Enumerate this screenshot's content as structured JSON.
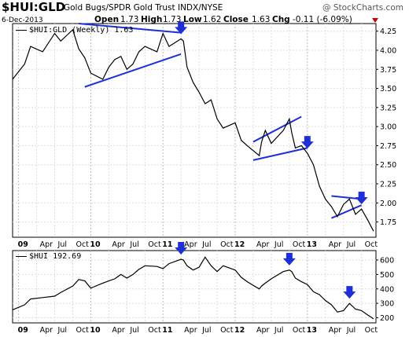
{
  "header": {
    "symbol": "$HUI:GLD",
    "description": "Gold Bugs/SPDR Gold Trust INDX/NYSE",
    "watermark": "@ StockCharts.com",
    "date": "6-Dec-2013",
    "open_label": "Open",
    "open": "1.73",
    "high_label": "High",
    "high": "1.73",
    "low_label": "Low",
    "low": "1.62",
    "close_label": "Close",
    "close": "1.63",
    "chg_label": "Chg",
    "chg": "-0.11 (-6.09%)"
  },
  "chart_data": [
    {
      "type": "line",
      "legend": "$HUI:GLD (Weekly) 1.63",
      "ylim": [
        1.55,
        4.35
      ],
      "y_ticks": [
        1.75,
        2.0,
        2.25,
        2.5,
        2.75,
        3.0,
        3.25,
        3.5,
        3.75,
        4.0,
        4.25
      ],
      "y_tick_labels": [
        "1.75",
        "2.00",
        "2.25",
        "2.50",
        "2.75",
        "3.00",
        "3.25",
        "3.50",
        "3.75",
        "4.00",
        "4.25"
      ],
      "x_ticks": [
        "09",
        "Apr",
        "Jul",
        "Oct",
        "10",
        "Apr",
        "Jul",
        "Oct",
        "11",
        "Apr",
        "Jul",
        "Oct",
        "12",
        "Apr",
        "Jul",
        "Oct",
        "13",
        "Apr",
        "Jul",
        "Oct"
      ],
      "x": [
        "2008-12",
        "2009-02",
        "2009-03",
        "2009-05",
        "2009-07",
        "2009-08",
        "2009-10",
        "2009-11",
        "2009-12",
        "2010-01",
        "2010-03",
        "2010-04",
        "2010-05",
        "2010-06",
        "2010-07",
        "2010-08",
        "2010-09",
        "2010-10",
        "2010-12",
        "2011-01",
        "2011-02",
        "2011-04",
        "2011-04",
        "2011-05",
        "2011-06",
        "2011-07",
        "2011-08",
        "2011-09",
        "2011-10",
        "2011-11",
        "2012-01",
        "2012-02",
        "2012-03",
        "2012-05",
        "2012-05",
        "2012-06",
        "2012-07",
        "2012-09",
        "2012-10",
        "2012-10",
        "2012-11",
        "2012-12",
        "2013-01",
        "2013-02",
        "2013-03",
        "2013-04",
        "2013-05",
        "2013-06",
        "2013-07",
        "2013-08",
        "2013-09",
        "2013-10",
        "2013-11",
        "2013-12"
      ],
      "series": [
        {
          "values": [
            3.62,
            3.82,
            4.05,
            3.98,
            4.22,
            4.12,
            4.27,
            4.02,
            3.9,
            3.7,
            3.62,
            3.78,
            3.88,
            3.92,
            3.75,
            3.82,
            3.98,
            4.05,
            3.98,
            4.22,
            4.05,
            4.15,
            4.12,
            3.78,
            3.58,
            3.45,
            3.3,
            3.35,
            3.1,
            2.98,
            3.05,
            2.82,
            2.75,
            2.62,
            2.8,
            2.95,
            2.78,
            2.95,
            3.1,
            2.92,
            2.72,
            2.75,
            2.65,
            2.5,
            2.22,
            2.05,
            1.95,
            1.82,
            1.98,
            2.05,
            1.85,
            1.92,
            1.78,
            1.63
          ]
        }
      ],
      "annotation_lines": [
        [
          [
            "2009-12",
            3.52
          ],
          [
            "2011-04",
            3.95
          ]
        ],
        [
          [
            "2009-11",
            4.35
          ],
          [
            "2011-04",
            4.23
          ]
        ],
        [
          [
            "2012-04",
            2.56
          ],
          [
            "2013-01",
            2.72
          ]
        ],
        [
          [
            "2012-04",
            2.8
          ],
          [
            "2012-12",
            3.13
          ]
        ],
        [
          [
            "2013-05",
            1.8
          ],
          [
            "2013-10",
            1.97
          ]
        ],
        [
          [
            "2013-05",
            2.09
          ],
          [
            "2013-10",
            2.05
          ]
        ]
      ],
      "arrow_markers": [
        "2011-04",
        "2013-01",
        "2013-10"
      ]
    },
    {
      "type": "line",
      "legend": "$HUI 192.69",
      "ylim": [
        165,
        665
      ],
      "y_ticks": [
        200,
        300,
        400,
        500,
        600
      ],
      "y_tick_labels": [
        "200",
        "300",
        "400",
        "500",
        "600"
      ],
      "x_ticks": [
        "09",
        "Apr",
        "Jul",
        "Oct",
        "10",
        "Apr",
        "Jul",
        "Oct",
        "11",
        "Apr",
        "Jul",
        "Oct",
        "12",
        "Apr",
        "Jul",
        "Oct",
        "13",
        "Apr",
        "Jul",
        "Oct"
      ],
      "x": [
        "2008-12",
        "2009-02",
        "2009-03",
        "2009-05",
        "2009-07",
        "2009-08",
        "2009-10",
        "2009-11",
        "2009-12",
        "2010-01",
        "2010-03",
        "2010-04",
        "2010-05",
        "2010-06",
        "2010-07",
        "2010-08",
        "2010-09",
        "2010-10",
        "2010-12",
        "2011-01",
        "2011-02",
        "2011-04",
        "2011-04",
        "2011-05",
        "2011-06",
        "2011-07",
        "2011-08",
        "2011-09",
        "2011-10",
        "2011-11",
        "2012-01",
        "2012-02",
        "2012-03",
        "2012-05",
        "2012-05",
        "2012-06",
        "2012-07",
        "2012-09",
        "2012-10",
        "2012-10",
        "2012-11",
        "2012-12",
        "2013-01",
        "2013-02",
        "2013-03",
        "2013-04",
        "2013-05",
        "2013-06",
        "2013-07",
        "2013-08",
        "2013-09",
        "2013-10",
        "2013-11",
        "2013-12"
      ],
      "series": [
        {
          "values": [
            255,
            290,
            330,
            340,
            350,
            375,
            420,
            465,
            455,
            405,
            440,
            455,
            470,
            500,
            475,
            500,
            535,
            560,
            555,
            540,
            575,
            605,
            600,
            560,
            530,
            550,
            620,
            560,
            520,
            560,
            530,
            480,
            450,
            400,
            420,
            440,
            470,
            520,
            530,
            520,
            475,
            450,
            430,
            380,
            360,
            320,
            290,
            240,
            250,
            300,
            260,
            250,
            220,
            193
          ]
        }
      ],
      "arrow_markers": [
        "2011-04",
        "2012-10",
        "2013-08"
      ]
    }
  ]
}
